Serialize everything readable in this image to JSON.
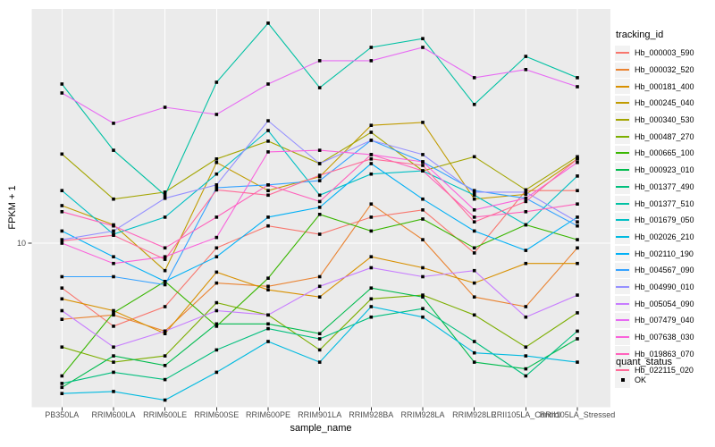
{
  "figure": {
    "panel_bg": "#EBEBEB",
    "grid_color": "#FFFFFF",
    "tick_text_color": "#4D4D4D",
    "marker_color": "#000000",
    "y_tick_label": "10"
  },
  "legend": {
    "title": "tracking_id"
  },
  "legend2": {
    "title": "quant_status",
    "items": [
      {
        "label": "OK"
      }
    ]
  },
  "chart_data": {
    "type": "line",
    "title": "",
    "xlabel": "sample_name",
    "ylabel": "FPKM + 1",
    "yscale": "log10",
    "y_ticks": [
      10
    ],
    "legend_position": "right",
    "grid": "vertical-major-plus-y10",
    "categories": [
      "PB350LA",
      "RRIM600LA",
      "RRIM600LE",
      "RRIM600SE",
      "RRIM600PE",
      "RRIM901LA",
      "RRIM928BA",
      "RRIM928LA",
      "RRIM928LE",
      "RRII105LA_Control",
      "RRII105LA_Stressed"
    ],
    "series": [
      {
        "name": "Hb_000003_590",
        "color": "#F8766D",
        "values": [
          6.8,
          4.9,
          5.8,
          9.6,
          11.6,
          10.8,
          12.5,
          13.3,
          9.2,
          15.7,
          15.7
        ]
      },
      {
        "name": "Hb_000032_520",
        "color": "#EA8331",
        "values": [
          5.2,
          5.4,
          4.7,
          7.1,
          6.9,
          7.5,
          14.0,
          10.3,
          6.3,
          5.8,
          9.6
        ]
      },
      {
        "name": "Hb_000181_400",
        "color": "#D89000",
        "values": [
          6.2,
          5.6,
          4.6,
          7.8,
          6.7,
          6.3,
          8.9,
          8.1,
          7.1,
          8.4,
          8.4
        ]
      },
      {
        "name": "Hb_000245_040",
        "color": "#C09B00",
        "values": [
          13.8,
          11.7,
          7.9,
          20.0,
          15.7,
          17.7,
          27.5,
          28.2,
          14.6,
          15.2,
          20.6
        ]
      },
      {
        "name": "Hb_000340_530",
        "color": "#A3A500",
        "values": [
          21.5,
          14.6,
          15.5,
          20.6,
          24.0,
          19.8,
          25.9,
          18.6,
          21.0,
          15.8,
          21.0
        ]
      },
      {
        "name": "Hb_000487_270",
        "color": "#7CAE00",
        "values": [
          4.1,
          3.6,
          3.8,
          6.0,
          5.4,
          4.0,
          6.2,
          6.4,
          5.4,
          4.1,
          5.5
        ]
      },
      {
        "name": "Hb_000665_100",
        "color": "#39B600",
        "values": [
          3.2,
          5.5,
          7.2,
          4.9,
          7.4,
          12.8,
          11.1,
          12.3,
          9.6,
          11.7,
          10.3
        ]
      },
      {
        "name": "Hb_000923_010",
        "color": "#00BB4E",
        "values": [
          2.9,
          3.8,
          3.5,
          5.0,
          5.0,
          4.6,
          6.8,
          6.3,
          3.6,
          3.4,
          4.4
        ]
      },
      {
        "name": "Hb_001377_490",
        "color": "#00BF7D",
        "values": [
          3.0,
          3.3,
          3.1,
          4.0,
          4.8,
          4.4,
          5.3,
          5.7,
          4.3,
          3.2,
          4.7
        ]
      },
      {
        "name": "Hb_001377_510",
        "color": "#00C1A3",
        "values": [
          39.2,
          22.2,
          15.1,
          39.8,
          66.1,
          38.0,
          53.7,
          57.9,
          32.9,
          49.7,
          41.4
        ]
      },
      {
        "name": "Hb_001679_050",
        "color": "#00BFC4",
        "values": [
          15.7,
          10.8,
          12.5,
          18.1,
          26.3,
          15.1,
          18.1,
          18.6,
          15.1,
          11.7,
          17.8
        ]
      },
      {
        "name": "Hb_002026_210",
        "color": "#00BAE0",
        "values": [
          2.75,
          2.8,
          2.6,
          3.3,
          4.3,
          3.6,
          5.8,
          5.3,
          3.9,
          3.8,
          3.6
        ]
      },
      {
        "name": "Hb_002110_190",
        "color": "#00B0F6",
        "values": [
          11.1,
          8.9,
          7.2,
          8.9,
          12.5,
          13.6,
          19.8,
          14.6,
          11.1,
          9.4,
          12.5
        ]
      },
      {
        "name": "Hb_004567_090",
        "color": "#35A2FF",
        "values": [
          7.5,
          7.5,
          7.0,
          16.1,
          16.5,
          17.1,
          24.2,
          20.1,
          15.7,
          14.7,
          11.6
        ]
      },
      {
        "name": "Hb_004990_010",
        "color": "#9590FF",
        "values": [
          10.3,
          11.1,
          14.7,
          16.5,
          28.6,
          19.8,
          24.2,
          21.4,
          15.5,
          15.5,
          12.0
        ]
      },
      {
        "name": "Hb_005054_090",
        "color": "#C77CFF",
        "values": [
          5.6,
          4.1,
          4.7,
          5.6,
          5.4,
          6.9,
          8.1,
          7.5,
          7.9,
          5.3,
          6.4
        ]
      },
      {
        "name": "Hb_007479_040",
        "color": "#E76BF3",
        "values": [
          36.3,
          28.0,
          32.1,
          30.2,
          39.2,
          47.9,
          47.9,
          53.7,
          41.4,
          44.4,
          38.3
        ]
      },
      {
        "name": "Hb_007638_030",
        "color": "#FA62DB",
        "values": [
          10.0,
          8.4,
          8.9,
          10.5,
          21.9,
          22.2,
          21.4,
          20.1,
          13.3,
          14.7,
          20.0
        ]
      },
      {
        "name": "Hb_019863_070",
        "color": "#FF62BC",
        "values": [
          13.1,
          11.6,
          9.6,
          12.5,
          16.5,
          14.3,
          21.4,
          18.6,
          12.5,
          13.1,
          14.0
        ]
      },
      {
        "name": "Hb_022115_020",
        "color": "#FF6A98",
        "values": [
          10.2,
          10.7,
          8.7,
          15.8,
          15.1,
          17.9,
          20.6,
          19.5,
          12.0,
          14.3,
          20.6
        ]
      }
    ]
  }
}
